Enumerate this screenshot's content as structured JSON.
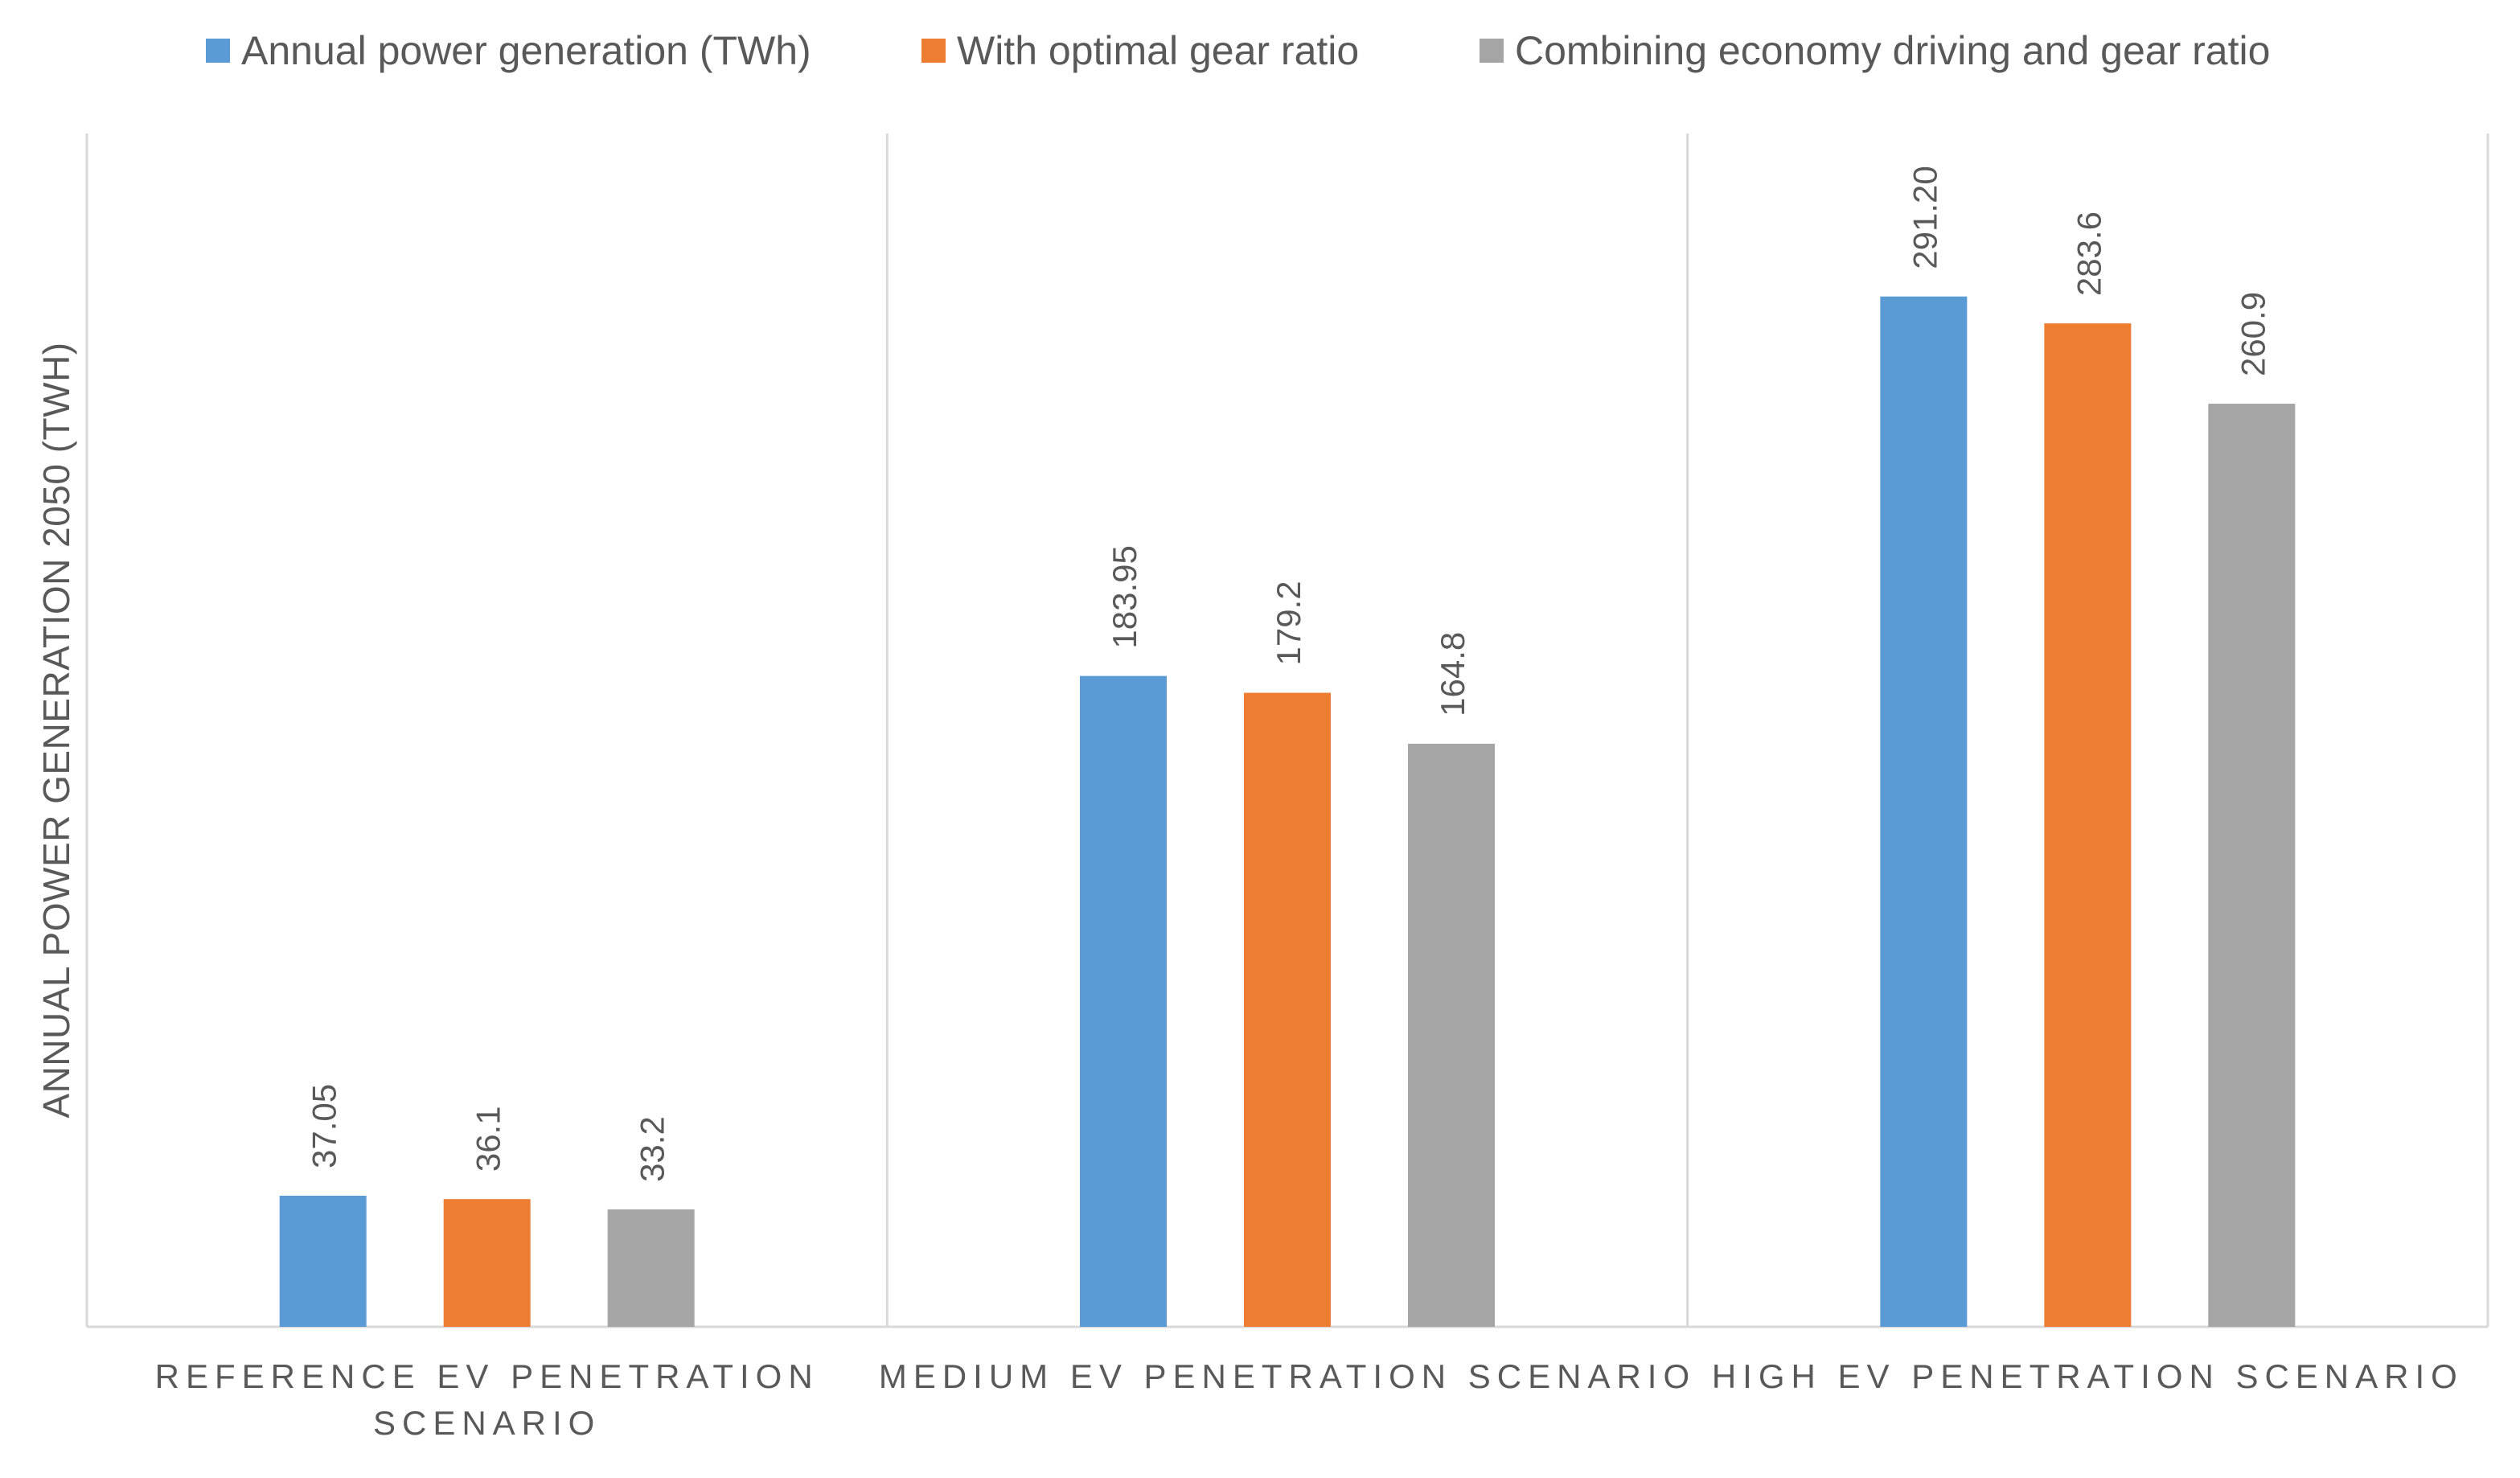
{
  "chart_data": {
    "type": "bar",
    "title": "",
    "xlabel": "",
    "ylabel": "ANNUAL POWER GENERATION 2050 (TWH)",
    "ylim": [
      0,
      360
    ],
    "grid": false,
    "legend_position": "top",
    "categories": [
      [
        "REFERENCE EV PENETRATION",
        "SCENARIO"
      ],
      [
        "MEDIUM EV PENETRATION SCENARIO"
      ],
      [
        "HIGH EV PENETRATION SCENARIO"
      ]
    ],
    "series": [
      {
        "name": "Annual power generation (TWh)",
        "color": "#5B9BD5",
        "values": [
          37.05,
          183.95,
          291.2
        ],
        "labels": [
          "37.05",
          "183.95",
          "291.20"
        ]
      },
      {
        "name": "With optimal gear ratio",
        "color": "#ED7D31",
        "values": [
          36.1,
          179.2,
          283.6
        ],
        "labels": [
          "36.1",
          "179.2",
          "283.6"
        ]
      },
      {
        "name": "Combining economy driving and gear ratio",
        "color": "#A5A5A5",
        "values": [
          33.2,
          164.8,
          260.9
        ],
        "labels": [
          "33.2",
          "164.8",
          "260.9"
        ]
      }
    ]
  }
}
